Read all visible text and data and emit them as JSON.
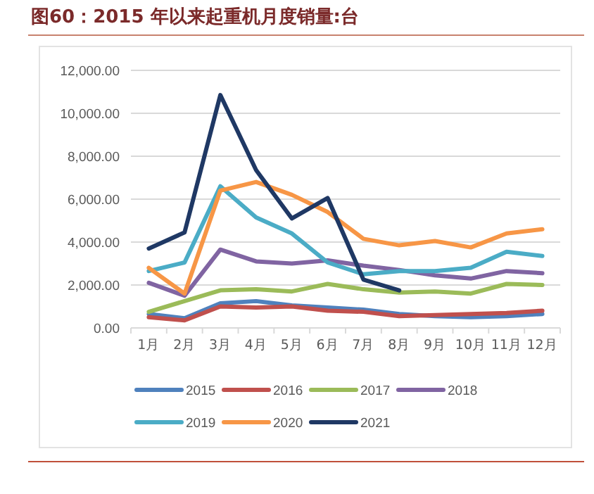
{
  "chart_data": {
    "type": "line",
    "title": "图60：2015 年以来起重机月度销量:台",
    "categories": [
      "1月",
      "2月",
      "3月",
      "4月",
      "5月",
      "6月",
      "7月",
      "8月",
      "9月",
      "10月",
      "11月",
      "12月"
    ],
    "ylim": [
      0,
      12000
    ],
    "yticks": [
      {
        "value": 0,
        "label": "0.00"
      },
      {
        "value": 2000,
        "label": "2,000.00"
      },
      {
        "value": 4000,
        "label": "4,000.00"
      },
      {
        "value": 6000,
        "label": "6,000.00"
      },
      {
        "value": 8000,
        "label": "8,000.00"
      },
      {
        "value": 10000,
        "label": "10,000.00"
      },
      {
        "value": 12000,
        "label": "12,000.00"
      }
    ],
    "grid": "y",
    "legend": "bottom",
    "marker": "none",
    "line_style": "solid",
    "series": [
      {
        "name": "2015",
        "color": "#4f81bd",
        "values": [
          650,
          450,
          1150,
          1250,
          1050,
          950,
          850,
          650,
          550,
          500,
          550,
          650
        ]
      },
      {
        "name": "2016",
        "color": "#c0504d",
        "values": [
          500,
          350,
          1000,
          950,
          1000,
          800,
          750,
          550,
          600,
          650,
          700,
          800
        ]
      },
      {
        "name": "2017",
        "color": "#9bbb59",
        "values": [
          750,
          1250,
          1750,
          1800,
          1700,
          2050,
          1800,
          1650,
          1700,
          1600,
          2050,
          2000
        ]
      },
      {
        "name": "2018",
        "color": "#8064a2",
        "values": [
          2100,
          1500,
          3650,
          3100,
          3000,
          3150,
          2900,
          2700,
          2450,
          2300,
          2650,
          2550
        ]
      },
      {
        "name": "2019",
        "color": "#4bacc6",
        "values": [
          2650,
          3050,
          6600,
          5150,
          4400,
          3050,
          2500,
          2650,
          2650,
          2800,
          3550,
          3350
        ]
      },
      {
        "name": "2020",
        "color": "#f79646",
        "values": [
          2800,
          1600,
          6400,
          6800,
          6200,
          5400,
          4150,
          3850,
          4050,
          3750,
          4400,
          4600
        ]
      },
      {
        "name": "2021",
        "color": "#1f3864",
        "values": [
          3700,
          4450,
          10850,
          7350,
          5100,
          6050,
          2250,
          1750,
          null,
          null,
          null,
          null
        ]
      }
    ]
  }
}
